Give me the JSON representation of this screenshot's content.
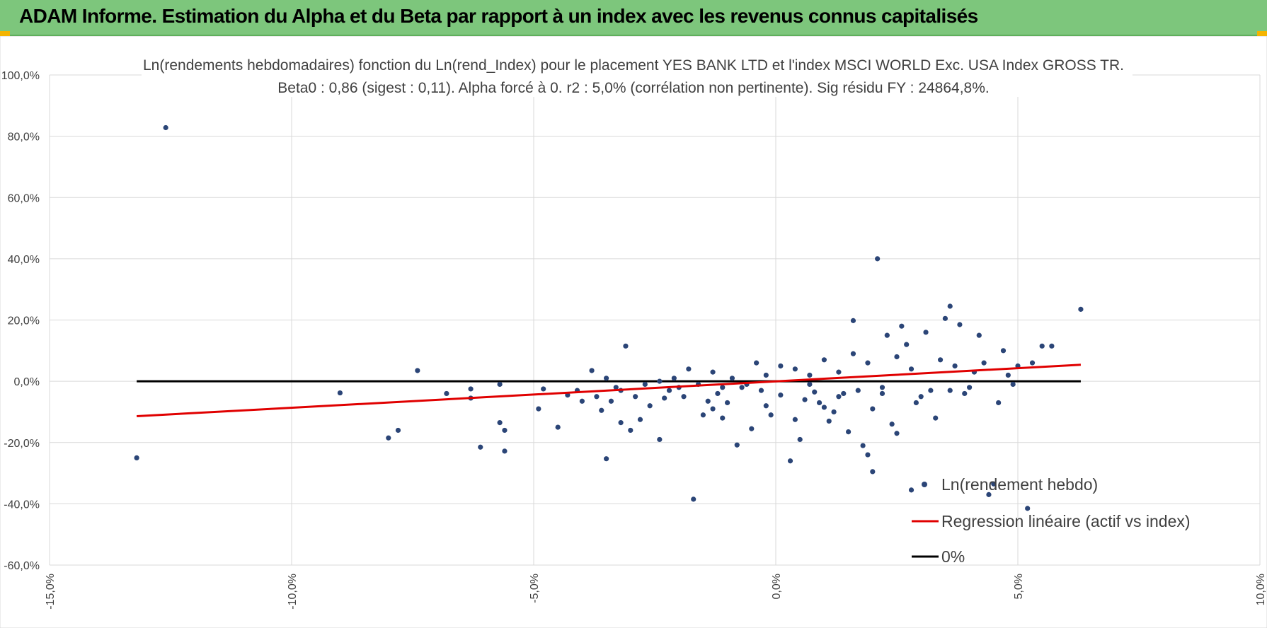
{
  "header": {
    "title": "ADAM Informe. Estimation du Alpha et du Beta par rapport à un index avec les revenus connus capitalisés"
  },
  "colors": {
    "header_bg": "#7dc67c",
    "points": "#2b4577",
    "regression": "#e00000",
    "zero_line": "#000000",
    "grid": "#d9d9d9"
  },
  "chart_data": {
    "type": "scatter",
    "title_line1": "Ln(rendements hebdomadaires) fonction du Ln(rend_Index) pour le placement YES BANK LTD et l'index MSCI WORLD Exc. USA Index GROSS TR.",
    "title_line2": "Beta0 : 0,86 (sigest : 0,11).  Alpha forcé à 0. r2 : 5,0% (corrélation non pertinente). Sig résidu FY : 24864,8%.",
    "xlim": [
      -15,
      10
    ],
    "ylim": [
      -60,
      100
    ],
    "x_ticks": [
      -15,
      -10,
      -5,
      0,
      5,
      10
    ],
    "y_ticks": [
      -60,
      -40,
      -20,
      0,
      20,
      40,
      60,
      80,
      100
    ],
    "x_tick_labels": [
      "-15,0%",
      "-10,0%",
      "-5,0%",
      "0,0%",
      "5,0%",
      "10,0%"
    ],
    "y_tick_labels": [
      "-60,0%",
      "-40,0%",
      "-20,0%",
      "0,0%",
      "20,0%",
      "40,0%",
      "60,0%",
      "80,0%",
      "100,0%"
    ],
    "grid": true,
    "legend_position": "bottom-right",
    "legend": [
      "Ln(rendement hebdo)",
      "Regression linéaire (actif vs index)",
      "0%"
    ],
    "series": [
      {
        "name": "Ln(rendement hebdo)",
        "kind": "scatter",
        "points": [
          [
            -13.2,
            -25
          ],
          [
            -12.6,
            82.8
          ],
          [
            -9,
            -3.8
          ],
          [
            -8,
            -18.5
          ],
          [
            -7.8,
            -16
          ],
          [
            -7.4,
            3.5
          ],
          [
            -6.8,
            -4
          ],
          [
            -6.3,
            -2.5
          ],
          [
            -6.3,
            -5.5
          ],
          [
            -6.1,
            -21.5
          ],
          [
            -5.7,
            -13.5
          ],
          [
            -5.7,
            -1
          ],
          [
            -5.6,
            -22.8
          ],
          [
            -5.6,
            -16
          ],
          [
            -4.9,
            -9
          ],
          [
            -4.8,
            -2.5
          ],
          [
            -4.5,
            -15
          ],
          [
            -4.3,
            -4.5
          ],
          [
            -4.1,
            -3
          ],
          [
            -4,
            -6.5
          ],
          [
            -3.8,
            3.5
          ],
          [
            -3.7,
            -5
          ],
          [
            -3.6,
            -9.5
          ],
          [
            -3.5,
            1
          ],
          [
            -3.5,
            -25.3
          ],
          [
            -3.4,
            -6.5
          ],
          [
            -3.3,
            -2
          ],
          [
            -3.2,
            -13.5
          ],
          [
            -3.2,
            -3
          ],
          [
            -3.1,
            11.5
          ],
          [
            -3,
            -16
          ],
          [
            -2.9,
            -5
          ],
          [
            -2.8,
            -12.5
          ],
          [
            -2.6,
            -8
          ],
          [
            -2.4,
            -19
          ],
          [
            -2.3,
            -5.5
          ],
          [
            -2.2,
            -3
          ],
          [
            -2,
            -2
          ],
          [
            -1.9,
            -5
          ],
          [
            -1.7,
            -38.5
          ],
          [
            -1.5,
            -11
          ],
          [
            -1.4,
            -6.5
          ],
          [
            -1.3,
            -9
          ],
          [
            -1.2,
            -4
          ],
          [
            -1.1,
            -12
          ],
          [
            -1,
            -7
          ],
          [
            -0.8,
            -20.8
          ],
          [
            -0.7,
            -2
          ],
          [
            -0.5,
            -15.5
          ],
          [
            -0.3,
            -3
          ],
          [
            -0.2,
            -8
          ],
          [
            -0.1,
            -11
          ],
          [
            0.1,
            -4.5
          ],
          [
            0.3,
            -26
          ],
          [
            0.4,
            -12.5
          ],
          [
            0.5,
            -19
          ],
          [
            0.6,
            -6
          ],
          [
            0.7,
            2
          ],
          [
            0.8,
            -3.5
          ],
          [
            0.9,
            -7
          ],
          [
            1,
            -8.5
          ],
          [
            1.1,
            -13
          ],
          [
            1.2,
            -10
          ],
          [
            1.3,
            -5
          ],
          [
            1.4,
            -4
          ],
          [
            1.5,
            -16.5
          ],
          [
            1.6,
            19.8
          ],
          [
            1.7,
            -3
          ],
          [
            1.8,
            -21
          ],
          [
            1.9,
            -24
          ],
          [
            2,
            -9
          ],
          [
            2,
            -29.5
          ],
          [
            2.1,
            40
          ],
          [
            2.2,
            -4
          ],
          [
            2.3,
            15
          ],
          [
            2.4,
            -14
          ],
          [
            2.5,
            -17
          ],
          [
            2.6,
            18
          ],
          [
            2.7,
            12
          ],
          [
            2.8,
            -35.5
          ],
          [
            2.9,
            -7
          ],
          [
            3.1,
            16
          ],
          [
            3.2,
            -3
          ],
          [
            3.3,
            -12
          ],
          [
            3.4,
            7
          ],
          [
            3.5,
            20.5
          ],
          [
            3.6,
            24.5
          ],
          [
            3.7,
            5
          ],
          [
            3.8,
            18.5
          ],
          [
            3.9,
            -4
          ],
          [
            4,
            -2
          ],
          [
            4.2,
            15
          ],
          [
            4.3,
            6
          ],
          [
            4.4,
            -37
          ],
          [
            4.5,
            -33.5
          ],
          [
            4.6,
            -7
          ],
          [
            4.7,
            10
          ],
          [
            4.8,
            2
          ],
          [
            4.9,
            -1
          ],
          [
            5,
            5
          ],
          [
            5.2,
            -41.5
          ],
          [
            5.3,
            6
          ],
          [
            5.5,
            11.5
          ],
          [
            5.7,
            11.5
          ],
          [
            6.3,
            23.5
          ],
          [
            4.1,
            3
          ],
          [
            3.6,
            -3
          ],
          [
            3,
            -5
          ],
          [
            2.8,
            4
          ],
          [
            2.5,
            8
          ],
          [
            2.2,
            -2
          ],
          [
            1.9,
            6
          ],
          [
            1.6,
            9
          ],
          [
            1.3,
            3
          ],
          [
            1,
            7
          ],
          [
            0.7,
            -1
          ],
          [
            0.4,
            4
          ],
          [
            0.1,
            5
          ],
          [
            -0.2,
            2
          ],
          [
            -0.4,
            6
          ],
          [
            -0.6,
            -1
          ],
          [
            -0.9,
            1
          ],
          [
            -1.1,
            -2
          ],
          [
            -1.3,
            3
          ],
          [
            -1.6,
            -1
          ],
          [
            -1.8,
            4
          ],
          [
            -2.1,
            1
          ],
          [
            -2.4,
            0
          ],
          [
            -2.7,
            -1
          ]
        ]
      },
      {
        "name": "Regression linéaire (actif vs index)",
        "kind": "line",
        "points": [
          [
            -13.2,
            -11.4
          ],
          [
            6.3,
            5.4
          ]
        ]
      },
      {
        "name": "0%",
        "kind": "line",
        "points": [
          [
            -13.2,
            0
          ],
          [
            6.3,
            0
          ]
        ]
      }
    ]
  }
}
